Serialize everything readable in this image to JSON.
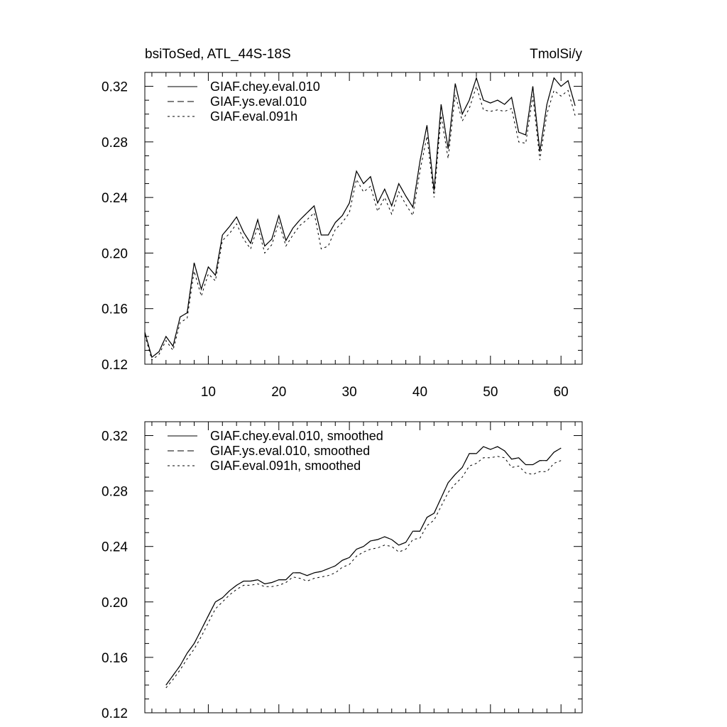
{
  "chart_data": [
    {
      "type": "line",
      "title_left": "bsiToSed, ATL_44S-18S",
      "title_right": "TmolSi/y",
      "xlim": [
        1,
        63
      ],
      "ylim": [
        0.12,
        0.33
      ],
      "yticks": [
        0.12,
        0.16,
        0.2,
        0.24,
        0.28,
        0.32
      ],
      "ytick_labels": [
        "0.12",
        "0.16",
        "0.20",
        "0.24",
        "0.28",
        "0.32"
      ],
      "xticks": [
        10,
        20,
        30,
        40,
        50,
        60
      ],
      "xtick_labels": [
        "10",
        "20",
        "30",
        "40",
        "50",
        "60"
      ],
      "legend_placement": "top-left",
      "x": [
        1,
        2,
        3,
        4,
        5,
        6,
        7,
        8,
        9,
        10,
        11,
        12,
        13,
        14,
        15,
        16,
        17,
        18,
        19,
        20,
        21,
        22,
        23,
        24,
        25,
        26,
        27,
        28,
        29,
        30,
        31,
        32,
        33,
        34,
        35,
        36,
        37,
        38,
        39,
        40,
        41,
        42,
        43,
        44,
        45,
        46,
        47,
        48,
        49,
        50,
        51,
        52,
        53,
        54,
        55,
        56,
        57,
        58,
        59,
        60,
        61,
        62
      ],
      "series": [
        {
          "name": "GIAF.chey.eval.010",
          "style": "solid",
          "values": [
            0.143,
            0.125,
            0.129,
            0.14,
            0.133,
            0.154,
            0.157,
            0.193,
            0.174,
            0.19,
            0.184,
            0.213,
            0.219,
            0.226,
            0.215,
            0.207,
            0.224,
            0.205,
            0.21,
            0.227,
            0.209,
            0.218,
            0.224,
            0.229,
            0.234,
            0.213,
            0.213,
            0.222,
            0.227,
            0.236,
            0.259,
            0.25,
            0.255,
            0.236,
            0.246,
            0.234,
            0.25,
            0.241,
            0.233,
            0.266,
            0.292,
            0.245,
            0.307,
            0.275,
            0.322,
            0.3,
            0.31,
            0.326,
            0.31,
            0.308,
            0.31,
            0.307,
            0.312,
            0.287,
            0.285,
            0.32,
            0.273,
            0.307,
            0.326,
            0.32,
            0.324,
            0.306
          ]
        },
        {
          "name": "GIAF.ys.eval.010",
          "style": "dashed",
          "values": [
            0.143,
            0.125,
            0.129,
            0.14,
            0.133,
            0.154,
            0.157,
            0.193,
            0.174,
            0.19,
            0.184,
            0.213,
            0.219,
            0.226,
            0.215,
            0.207,
            0.224,
            0.205,
            0.21,
            0.227,
            0.209,
            0.218,
            0.224,
            0.229,
            0.234,
            0.213,
            0.213,
            0.222,
            0.227,
            0.236,
            0.259,
            0.25,
            0.255,
            0.236,
            0.246,
            0.234,
            0.25,
            0.241,
            0.233,
            0.266,
            0.292,
            0.245,
            0.307,
            0.275,
            0.322,
            0.3,
            0.31,
            0.326,
            0.31,
            0.308,
            0.31,
            0.307,
            0.312,
            0.287,
            0.285,
            0.32,
            0.273,
            0.307,
            0.326,
            0.32,
            0.324,
            0.306
          ]
        },
        {
          "name": "GIAF.eval.091h",
          "style": "dotted",
          "values": [
            0.141,
            0.123,
            0.127,
            0.137,
            0.13,
            0.15,
            0.153,
            0.187,
            0.169,
            0.185,
            0.18,
            0.209,
            0.214,
            0.221,
            0.21,
            0.203,
            0.219,
            0.2,
            0.206,
            0.222,
            0.205,
            0.213,
            0.22,
            0.224,
            0.229,
            0.203,
            0.205,
            0.217,
            0.222,
            0.229,
            0.253,
            0.244,
            0.248,
            0.23,
            0.24,
            0.228,
            0.244,
            0.235,
            0.227,
            0.259,
            0.284,
            0.24,
            0.299,
            0.268,
            0.314,
            0.295,
            0.304,
            0.32,
            0.303,
            0.302,
            0.303,
            0.302,
            0.304,
            0.28,
            0.279,
            0.313,
            0.267,
            0.3,
            0.317,
            0.313,
            0.317,
            0.299
          ]
        }
      ]
    },
    {
      "type": "line",
      "xlim": [
        1,
        63
      ],
      "ylim": [
        0.12,
        0.33
      ],
      "yticks": [
        0.12,
        0.16,
        0.2,
        0.24,
        0.28,
        0.32
      ],
      "ytick_labels": [
        "0.12",
        "0.16",
        "0.20",
        "0.24",
        "0.28",
        "0.32"
      ],
      "xticks": [
        10,
        20,
        30,
        40,
        50,
        60
      ],
      "legend_placement": "top-left",
      "x": [
        4,
        5,
        6,
        7,
        8,
        9,
        10,
        11,
        12,
        13,
        14,
        15,
        16,
        17,
        18,
        19,
        20,
        21,
        22,
        23,
        24,
        25,
        26,
        27,
        28,
        29,
        30,
        31,
        32,
        33,
        34,
        35,
        36,
        37,
        38,
        39,
        40,
        41,
        42,
        43,
        44,
        45,
        46,
        47,
        48,
        49,
        50,
        51,
        52,
        53,
        54,
        55,
        56,
        57,
        58,
        59,
        60
      ],
      "series": [
        {
          "name": "GIAF.chey.eval.010, smoothed",
          "style": "solid",
          "values": [
            0.14,
            0.147,
            0.154,
            0.163,
            0.17,
            0.18,
            0.19,
            0.2,
            0.203,
            0.208,
            0.212,
            0.215,
            0.215,
            0.216,
            0.213,
            0.214,
            0.216,
            0.216,
            0.221,
            0.221,
            0.219,
            0.221,
            0.222,
            0.224,
            0.226,
            0.23,
            0.232,
            0.238,
            0.24,
            0.244,
            0.245,
            0.247,
            0.245,
            0.241,
            0.243,
            0.251,
            0.251,
            0.261,
            0.264,
            0.275,
            0.286,
            0.292,
            0.297,
            0.307,
            0.307,
            0.312,
            0.31,
            0.312,
            0.309,
            0.303,
            0.304,
            0.299,
            0.299,
            0.302,
            0.302,
            0.308,
            0.311
          ]
        },
        {
          "name": "GIAF.ys.eval.010, smoothed",
          "style": "dashed",
          "values": [
            0.14,
            0.147,
            0.154,
            0.163,
            0.17,
            0.18,
            0.19,
            0.2,
            0.203,
            0.208,
            0.212,
            0.215,
            0.215,
            0.216,
            0.213,
            0.214,
            0.216,
            0.216,
            0.221,
            0.221,
            0.219,
            0.221,
            0.222,
            0.224,
            0.226,
            0.23,
            0.232,
            0.238,
            0.24,
            0.244,
            0.245,
            0.247,
            0.245,
            0.241,
            0.243,
            0.251,
            0.251,
            0.261,
            0.264,
            0.275,
            0.286,
            0.292,
            0.297,
            0.307,
            0.307,
            0.312,
            0.31,
            0.312,
            0.309,
            0.303,
            0.304,
            0.299,
            0.299,
            0.302,
            0.302,
            0.308,
            0.311
          ]
        },
        {
          "name": "GIAF.eval.091h, smoothed",
          "style": "dotted",
          "values": [
            0.138,
            0.144,
            0.151,
            0.159,
            0.166,
            0.175,
            0.185,
            0.195,
            0.2,
            0.205,
            0.209,
            0.212,
            0.212,
            0.213,
            0.211,
            0.211,
            0.212,
            0.214,
            0.218,
            0.217,
            0.215,
            0.217,
            0.218,
            0.219,
            0.221,
            0.225,
            0.227,
            0.233,
            0.236,
            0.238,
            0.239,
            0.241,
            0.24,
            0.236,
            0.238,
            0.245,
            0.246,
            0.255,
            0.259,
            0.269,
            0.279,
            0.285,
            0.29,
            0.298,
            0.3,
            0.304,
            0.304,
            0.305,
            0.304,
            0.297,
            0.298,
            0.293,
            0.292,
            0.294,
            0.294,
            0.3,
            0.302
          ]
        }
      ]
    }
  ]
}
